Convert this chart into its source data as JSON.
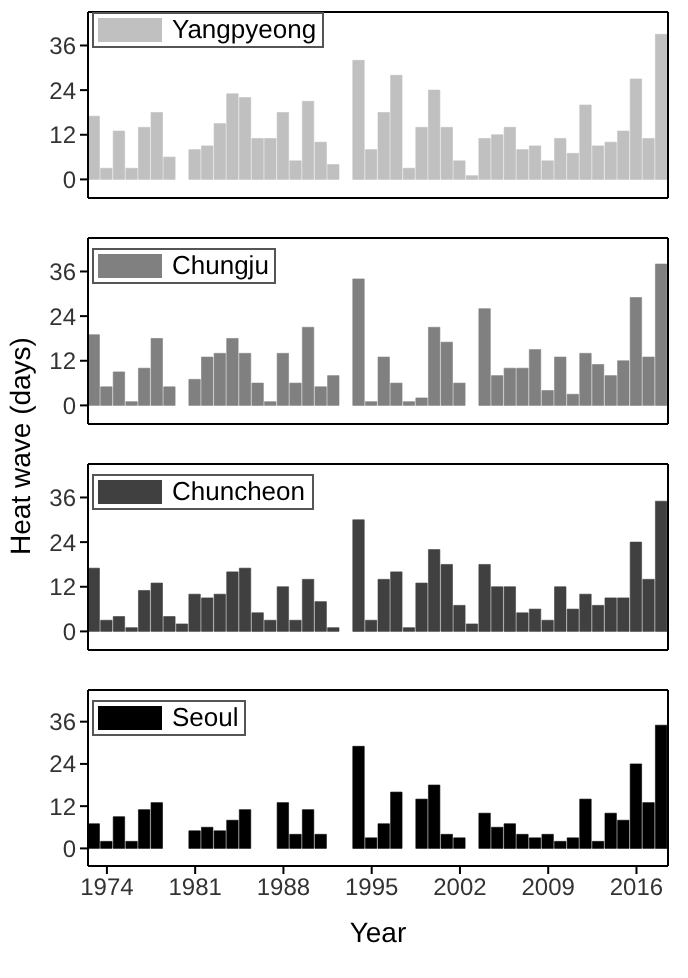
{
  "chart_data": [
    {
      "type": "bar",
      "ylabel": "Heat wave (days)",
      "x": [
        1973,
        1974,
        1975,
        1976,
        1977,
        1978,
        1979,
        1980,
        1981,
        1982,
        1983,
        1984,
        1985,
        1986,
        1987,
        1988,
        1989,
        1990,
        1991,
        1992,
        1993,
        1994,
        1995,
        1996,
        1997,
        1998,
        1999,
        2000,
        2001,
        2002,
        2003,
        2004,
        2005,
        2006,
        2007,
        2008,
        2009,
        2010,
        2011,
        2012,
        2013,
        2014,
        2015,
        2016,
        2017,
        2018
      ],
      "xlim": [
        1972.5,
        2018.5
      ],
      "xticks": [
        1974,
        1981,
        1988,
        1995,
        2002,
        2009,
        2016
      ],
      "ylim": [
        -5,
        45
      ],
      "yticks": [
        0,
        12,
        24,
        36
      ],
      "tick_labels": "y",
      "legend": "top left",
      "series": [
        {
          "name": "Yangpyeong",
          "color": "#c0c0c0",
          "values": [
            17,
            3,
            13,
            3,
            14,
            18,
            6,
            0,
            8,
            9,
            15,
            23,
            22,
            11,
            11,
            18,
            5,
            21,
            10,
            4,
            0,
            32,
            8,
            18,
            28,
            3,
            14,
            24,
            14,
            5,
            1,
            11,
            12,
            14,
            8,
            9,
            5,
            11,
            7,
            20,
            9,
            10,
            13,
            27,
            11,
            39
          ]
        }
      ]
    },
    {
      "type": "bar",
      "x": [
        1973,
        1974,
        1975,
        1976,
        1977,
        1978,
        1979,
        1980,
        1981,
        1982,
        1983,
        1984,
        1985,
        1986,
        1987,
        1988,
        1989,
        1990,
        1991,
        1992,
        1993,
        1994,
        1995,
        1996,
        1997,
        1998,
        1999,
        2000,
        2001,
        2002,
        2003,
        2004,
        2005,
        2006,
        2007,
        2008,
        2009,
        2010,
        2011,
        2012,
        2013,
        2014,
        2015,
        2016,
        2017,
        2018
      ],
      "xlim": [
        1972.5,
        2018.5
      ],
      "xticks": [
        1974,
        1981,
        1988,
        1995,
        2002,
        2009,
        2016
      ],
      "ylim": [
        -5,
        45
      ],
      "yticks": [
        0,
        12,
        24,
        36
      ],
      "tick_labels": "y",
      "legend": "top left",
      "series": [
        {
          "name": "Chungju",
          "color": "#808080",
          "values": [
            19,
            5,
            9,
            1,
            10,
            18,
            5,
            0,
            7,
            13,
            14,
            18,
            14,
            6,
            1,
            14,
            6,
            21,
            5,
            8,
            0,
            34,
            1,
            13,
            6,
            1,
            2,
            21,
            17,
            6,
            0,
            26,
            8,
            10,
            10,
            15,
            4,
            13,
            3,
            14,
            11,
            8,
            12,
            29,
            13,
            38
          ]
        }
      ]
    },
    {
      "type": "bar",
      "x": [
        1973,
        1974,
        1975,
        1976,
        1977,
        1978,
        1979,
        1980,
        1981,
        1982,
        1983,
        1984,
        1985,
        1986,
        1987,
        1988,
        1989,
        1990,
        1991,
        1992,
        1993,
        1994,
        1995,
        1996,
        1997,
        1998,
        1999,
        2000,
        2001,
        2002,
        2003,
        2004,
        2005,
        2006,
        2007,
        2008,
        2009,
        2010,
        2011,
        2012,
        2013,
        2014,
        2015,
        2016,
        2017,
        2018
      ],
      "xlim": [
        1972.5,
        2018.5
      ],
      "xticks": [
        1974,
        1981,
        1988,
        1995,
        2002,
        2009,
        2016
      ],
      "ylim": [
        -5,
        45
      ],
      "yticks": [
        0,
        12,
        24,
        36
      ],
      "tick_labels": "y",
      "legend": "top left",
      "series": [
        {
          "name": "Chuncheon",
          "color": "#404040",
          "values": [
            17,
            3,
            4,
            1,
            11,
            13,
            4,
            2,
            10,
            9,
            10,
            16,
            17,
            5,
            3,
            12,
            3,
            14,
            8,
            1,
            0,
            30,
            3,
            14,
            16,
            1,
            13,
            22,
            18,
            7,
            2,
            18,
            12,
            12,
            5,
            6,
            3,
            12,
            6,
            10,
            7,
            9,
            9,
            24,
            14,
            35
          ]
        }
      ]
    },
    {
      "type": "bar",
      "xlabel": "Year",
      "x": [
        1973,
        1974,
        1975,
        1976,
        1977,
        1978,
        1979,
        1980,
        1981,
        1982,
        1983,
        1984,
        1985,
        1986,
        1987,
        1988,
        1989,
        1990,
        1991,
        1992,
        1993,
        1994,
        1995,
        1996,
        1997,
        1998,
        1999,
        2000,
        2001,
        2002,
        2003,
        2004,
        2005,
        2006,
        2007,
        2008,
        2009,
        2010,
        2011,
        2012,
        2013,
        2014,
        2015,
        2016,
        2017,
        2018
      ],
      "xlim": [
        1972.5,
        2018.5
      ],
      "xticks": [
        1974,
        1981,
        1988,
        1995,
        2002,
        2009,
        2016
      ],
      "ylim": [
        -5,
        45
      ],
      "yticks": [
        0,
        12,
        24,
        36
      ],
      "legend": "top left",
      "series": [
        {
          "name": "Seoul",
          "color": "#000000",
          "values": [
            7,
            2,
            9,
            2,
            11,
            13,
            0,
            0,
            5,
            6,
            5,
            8,
            11,
            0,
            0,
            13,
            4,
            11,
            4,
            0,
            0,
            29,
            3,
            7,
            16,
            0,
            14,
            18,
            4,
            3,
            0,
            10,
            6,
            7,
            4,
            3,
            4,
            2,
            3,
            14,
            2,
            10,
            8,
            24,
            13,
            35
          ]
        }
      ]
    }
  ]
}
